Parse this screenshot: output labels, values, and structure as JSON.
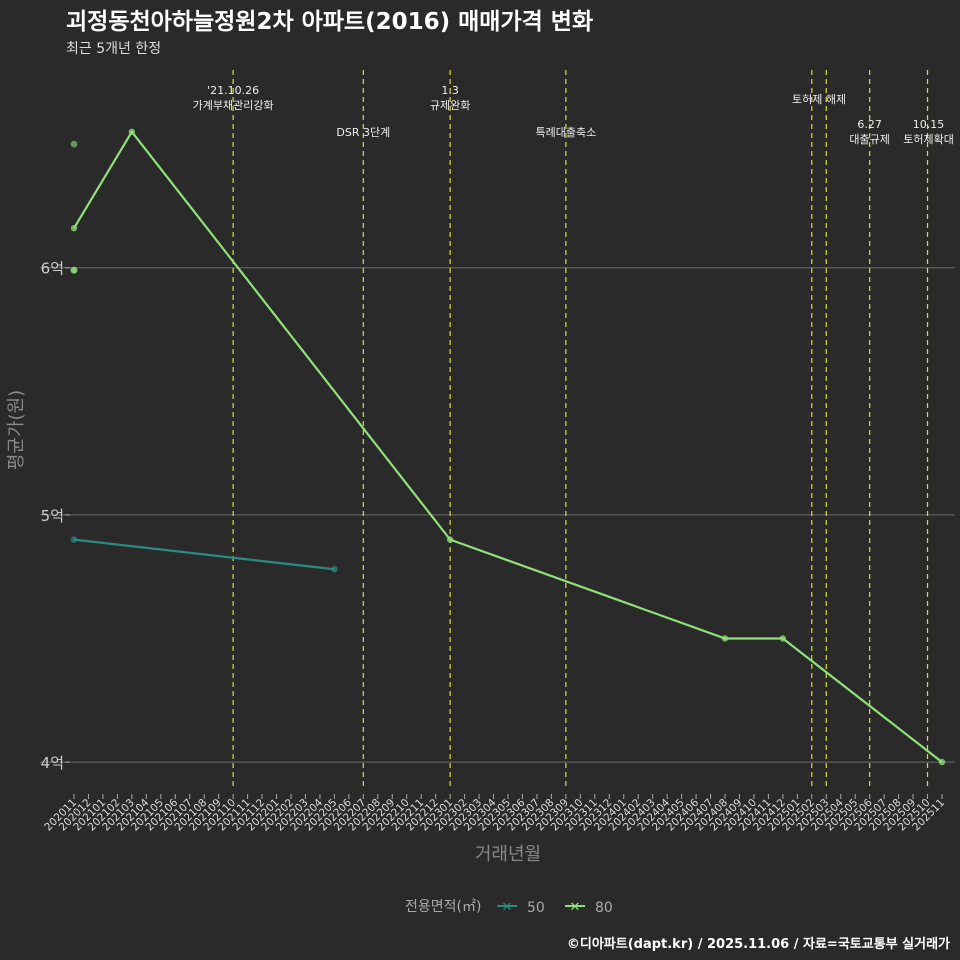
{
  "chart_data": {
    "type": "line",
    "title": "괴정동천아하늘정원2차 아파트(2016) 매매가격 변화",
    "subtitle": "최근 5개년 한정",
    "xlabel": "거래년월",
    "ylabel": "평균가(원)",
    "ylim": [
      3.887,
      6.8
    ],
    "yticks": [
      {
        "v": 4,
        "label": "4억"
      },
      {
        "v": 5,
        "label": "5억"
      },
      {
        "v": 6,
        "label": "6억"
      }
    ],
    "x": [
      "202011",
      "202012",
      "202101",
      "202102",
      "202103",
      "202104",
      "202105",
      "202106",
      "202107",
      "202108",
      "202109",
      "202110",
      "202111",
      "202112",
      "202201",
      "202202",
      "202203",
      "202204",
      "202205",
      "202206",
      "202207",
      "202208",
      "202209",
      "202210",
      "202211",
      "202212",
      "202301",
      "202302",
      "202303",
      "202304",
      "202305",
      "202306",
      "202307",
      "202308",
      "202309",
      "202310",
      "202311",
      "202312",
      "202401",
      "202402",
      "202403",
      "202404",
      "202405",
      "202406",
      "202407",
      "202408",
      "202409",
      "202410",
      "202411",
      "202412",
      "202501",
      "202502",
      "202503",
      "202504",
      "202505",
      "202506",
      "202507",
      "202508",
      "202509",
      "202510",
      "202511"
    ],
    "series": [
      {
        "name": "50",
        "color": "#2a8a84",
        "points": [
          [
            "202011",
            4.9
          ],
          [
            "202205",
            4.78
          ]
        ]
      },
      {
        "name": "80",
        "color": "#90e07a",
        "points": [
          [
            "202011",
            6.16
          ],
          [
            "202103",
            6.55
          ],
          [
            "202301",
            4.9
          ],
          [
            "202408",
            4.5
          ],
          [
            "202412",
            4.5
          ],
          [
            "202511",
            4.0
          ]
        ]
      }
    ],
    "extra_points": [
      {
        "series": "80",
        "x": "202011",
        "y": 6.5
      },
      {
        "series": "80",
        "x": "202011",
        "y": 5.99
      }
    ],
    "events": [
      {
        "x": "202110",
        "lines": [
          "'21.10.26",
          "가계부채관리강화"
        ],
        "row": 0
      },
      {
        "x": "202207",
        "lines": [
          "DSR 3단계"
        ],
        "row": 2
      },
      {
        "x": "202301",
        "lines": [
          "1.3",
          "규제완화"
        ],
        "row": 0
      },
      {
        "x": "202309",
        "lines": [
          "특례대출축소"
        ],
        "row": 2
      },
      {
        "x": "202502",
        "lines": [
          "토허제 해제"
        ],
        "row": 1,
        "anchor_between": "202503"
      },
      {
        "x": "202503",
        "lines": [],
        "row": 1
      },
      {
        "x": "202506",
        "lines": [
          "6.27",
          "대출규제"
        ],
        "row": 3
      },
      {
        "x": "202510",
        "lines": [
          "10.15",
          "토허제확대"
        ],
        "row": 3
      }
    ],
    "legend": {
      "title": "전용면적(㎡)",
      "position": "bottom"
    },
    "caption": "©디아파트(dapt.kr) / 2025.11.06 / 자료=국토교통부 실거래가"
  }
}
